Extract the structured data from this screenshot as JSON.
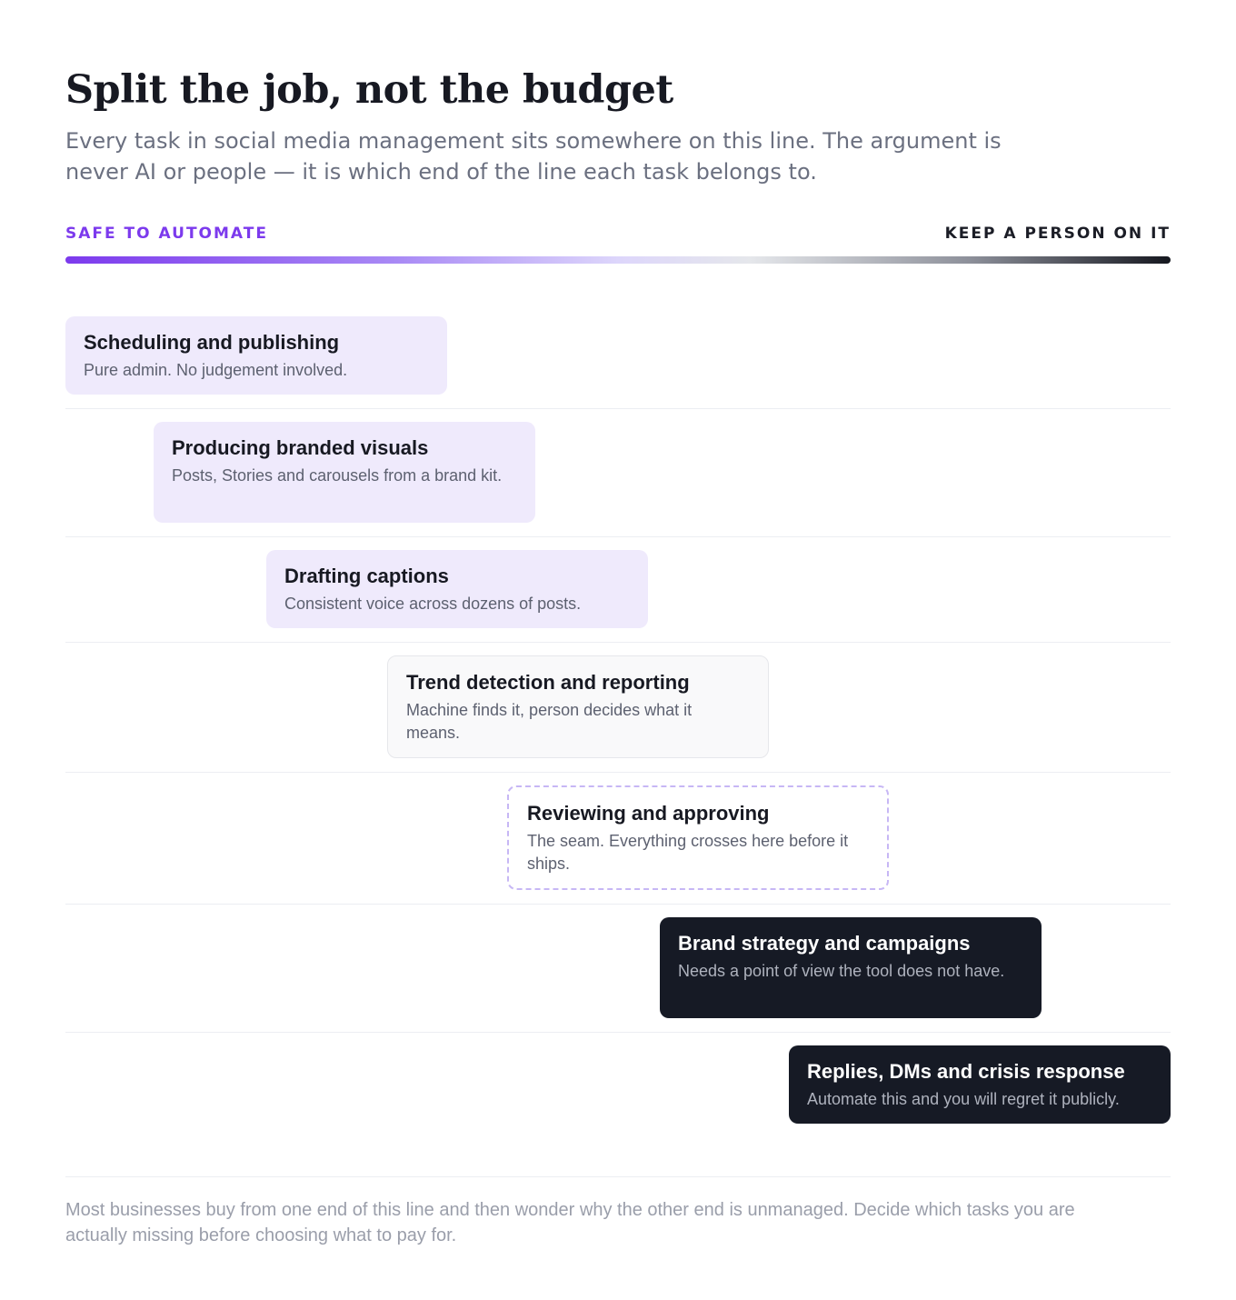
{
  "header": {
    "title": "Split the job, not the budget",
    "subtitle": "Every task in social media management sits somewhere on this line. The argument is never AI or people — it is which end of the line each task belongs to."
  },
  "scale": {
    "left_label": "SAFE TO AUTOMATE",
    "right_label": "KEEP A PERSON ON IT",
    "left_color": "#7c3aed",
    "right_color": "#15171f"
  },
  "tasks": [
    {
      "title": "Scheduling and publishing",
      "description": "Pure admin. No judgement involved.",
      "zone": "automate"
    },
    {
      "title": "Producing branded visuals",
      "description": "Posts, Stories and carousels from a brand kit.",
      "zone": "automate"
    },
    {
      "title": "Drafting captions",
      "description": "Consistent voice across dozens of posts.",
      "zone": "automate"
    },
    {
      "title": "Trend detection and reporting",
      "description": "Machine finds it, person decides what it means.",
      "zone": "mixed"
    },
    {
      "title": "Reviewing and approving",
      "description": "The seam. Everything crosses here before it ships.",
      "zone": "seam"
    },
    {
      "title": "Brand strategy and campaigns",
      "description": "Needs a point of view the tool does not have.",
      "zone": "human"
    },
    {
      "title": "Replies, DMs and crisis response",
      "description": "Automate this and you will regret it publicly.",
      "zone": "human"
    }
  ],
  "footer": {
    "note": "Most businesses buy from one end of this line and then wonder why the other end is unmanaged. Decide which tasks you are actually missing before choosing what to pay for."
  }
}
